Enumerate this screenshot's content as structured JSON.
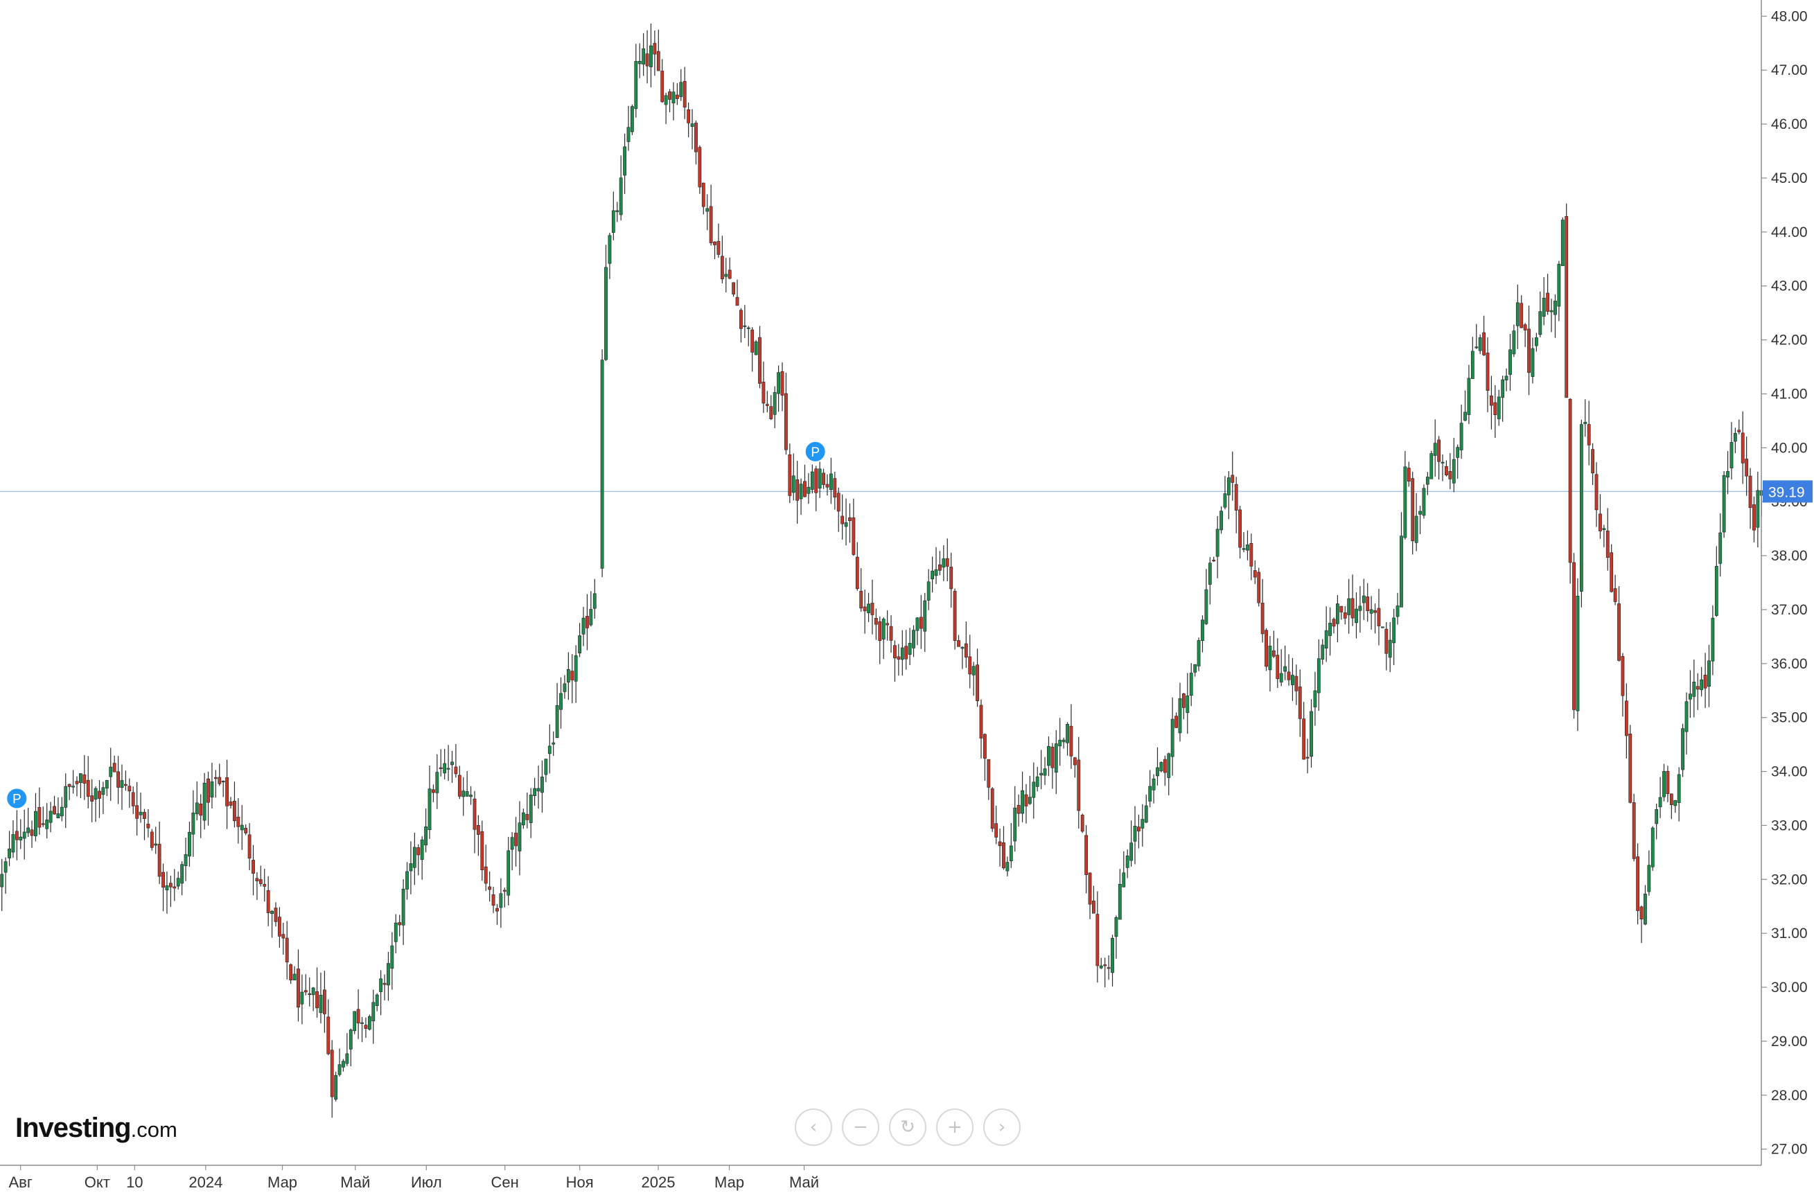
{
  "branding": {
    "logo_main": "Investing",
    "logo_suffix": ".com"
  },
  "colors": {
    "up": "#1e8a4c",
    "down": "#c0392b",
    "wick": "#2b2b2b",
    "price_line": "#a8c4ec",
    "price_label_bg": "#3d7fe0",
    "axis": "#8c8c8c"
  },
  "navigation": {
    "scroll_left_icon": "chevron-left-icon",
    "zoom_out_icon": "minus-icon",
    "reset_icon": "refresh-icon",
    "zoom_in_icon": "plus-icon",
    "scroll_right_icon": "chevron-right-icon"
  },
  "chart_data": {
    "type": "candlestick",
    "title": "",
    "xlabel": "",
    "ylabel": "",
    "y_axis_position": "right",
    "ylim": [
      26.7,
      48.3
    ],
    "y_ticks": [
      "27.00",
      "28.00",
      "29.00",
      "30.00",
      "31.00",
      "32.00",
      "33.00",
      "34.00",
      "35.00",
      "36.00",
      "37.00",
      "38.00",
      "39.00",
      "40.00",
      "41.00",
      "42.00",
      "43.00",
      "44.00",
      "45.00",
      "46.00",
      "47.00",
      "48.00"
    ],
    "x_ticks": [
      "Авг",
      "Окт",
      "10",
      "2024",
      "Мар",
      "Май",
      "Июл",
      "Сен",
      "Ноя",
      "2025",
      "Мар",
      "Май"
    ],
    "current_price": {
      "value": 39.19,
      "label": "39.19"
    },
    "event_markers": [
      {
        "label": "P",
        "position": "Aug 2023",
        "price": 33.5
      },
      {
        "label": "P",
        "position": "late May 2024",
        "price": 39.8
      }
    ],
    "price_path": [
      [
        0,
        31.9
      ],
      [
        0.5,
        33.0
      ],
      [
        1.2,
        33.0
      ],
      [
        2.0,
        33.8
      ],
      [
        2.5,
        33.6
      ],
      [
        3.0,
        34.0
      ],
      [
        3.5,
        33.5
      ],
      [
        4.0,
        33.0
      ],
      [
        4.3,
        32.1
      ],
      [
        4.8,
        31.9
      ],
      [
        5.2,
        33.3
      ],
      [
        5.8,
        33.8
      ],
      [
        6.3,
        33.2
      ],
      [
        6.8,
        32.3
      ],
      [
        7.3,
        31.2
      ],
      [
        7.8,
        30.2
      ],
      [
        8.1,
        29.6
      ],
      [
        8.6,
        29.9
      ],
      [
        8.9,
        28.1
      ],
      [
        9.5,
        29.5
      ],
      [
        10.0,
        29.5
      ],
      [
        10.3,
        30.2
      ],
      [
        10.8,
        31.7
      ],
      [
        11.2,
        32.6
      ],
      [
        11.6,
        33.8
      ],
      [
        12.0,
        34.1
      ],
      [
        12.6,
        33.5
      ],
      [
        13.0,
        32.0
      ],
      [
        13.3,
        31.2
      ],
      [
        13.6,
        32.4
      ],
      [
        14.0,
        33.1
      ],
      [
        14.5,
        34.0
      ],
      [
        15.0,
        35.2
      ],
      [
        15.5,
        36.3
      ],
      [
        16.0,
        37.7
      ],
      [
        16.05,
        41.0
      ],
      [
        16.2,
        43.5
      ],
      [
        16.6,
        44.8
      ],
      [
        17.0,
        47.0
      ],
      [
        17.4,
        47.3
      ],
      [
        17.8,
        46.5
      ],
      [
        18.2,
        46.8
      ],
      [
        18.6,
        45.5
      ],
      [
        19.0,
        44.0
      ],
      [
        19.4,
        43.2
      ],
      [
        19.8,
        42.5
      ],
      [
        20.2,
        41.8
      ],
      [
        20.5,
        40.5
      ],
      [
        20.9,
        41.3
      ],
      [
        21.1,
        39.3
      ],
      [
        21.5,
        39.1
      ],
      [
        22.0,
        39.6
      ],
      [
        22.3,
        39.3
      ],
      [
        22.7,
        38.5
      ],
      [
        23.0,
        37.0
      ],
      [
        23.4,
        36.8
      ],
      [
        23.8,
        36.4
      ],
      [
        24.1,
        36.2
      ],
      [
        24.5,
        36.6
      ],
      [
        24.9,
        37.6
      ],
      [
        25.3,
        38.1
      ],
      [
        25.6,
        36.1
      ],
      [
        26.0,
        36.0
      ],
      [
        26.3,
        34.5
      ],
      [
        26.6,
        32.8
      ],
      [
        26.9,
        32.2
      ],
      [
        27.2,
        33.3
      ],
      [
        27.6,
        33.7
      ],
      [
        28.0,
        34.2
      ],
      [
        28.3,
        34.3
      ],
      [
        28.6,
        34.7
      ],
      [
        28.9,
        33.1
      ],
      [
        29.1,
        32.0
      ],
      [
        29.4,
        30.2
      ],
      [
        29.7,
        30.6
      ],
      [
        30.0,
        32.0
      ],
      [
        30.4,
        33.0
      ],
      [
        30.8,
        33.6
      ],
      [
        31.1,
        34.1
      ],
      [
        31.5,
        35.2
      ],
      [
        31.9,
        35.8
      ],
      [
        32.3,
        37.5
      ],
      [
        32.6,
        38.5
      ],
      [
        32.9,
        39.3
      ],
      [
        33.2,
        38.2
      ],
      [
        33.5,
        38.0
      ],
      [
        33.8,
        36.2
      ],
      [
        34.2,
        35.9
      ],
      [
        34.6,
        35.6
      ],
      [
        34.9,
        34.1
      ],
      [
        35.2,
        35.8
      ],
      [
        35.6,
        36.7
      ],
      [
        36.0,
        37.1
      ],
      [
        36.4,
        37.0
      ],
      [
        36.8,
        36.9
      ],
      [
        37.1,
        36.3
      ],
      [
        37.4,
        37.3
      ],
      [
        37.6,
        39.9
      ],
      [
        37.8,
        38.2
      ],
      [
        38.1,
        39.4
      ],
      [
        38.4,
        39.9
      ],
      [
        38.8,
        39.6
      ],
      [
        39.2,
        41.0
      ],
      [
        39.6,
        42.3
      ],
      [
        39.9,
        40.5
      ],
      [
        40.3,
        41.3
      ],
      [
        40.6,
        42.6
      ],
      [
        40.9,
        41.5
      ],
      [
        41.2,
        42.8
      ],
      [
        41.5,
        42.4
      ],
      [
        41.8,
        44.2
      ],
      [
        41.9,
        40.0
      ],
      [
        42.1,
        35.0
      ],
      [
        42.3,
        40.8
      ],
      [
        42.6,
        39.2
      ],
      [
        42.9,
        38.2
      ],
      [
        43.2,
        37.0
      ],
      [
        43.5,
        34.5
      ],
      [
        43.7,
        32.0
      ],
      [
        43.9,
        31.0
      ],
      [
        44.2,
        33.0
      ],
      [
        44.5,
        34.0
      ],
      [
        44.8,
        33.4
      ],
      [
        45.1,
        35.2
      ],
      [
        45.4,
        35.8
      ],
      [
        45.6,
        35.5
      ],
      [
        45.8,
        37.0
      ],
      [
        46.1,
        39.5
      ],
      [
        46.4,
        40.3
      ],
      [
        46.7,
        39.6
      ],
      [
        46.9,
        38.7
      ],
      [
        47.1,
        39.2
      ]
    ]
  }
}
